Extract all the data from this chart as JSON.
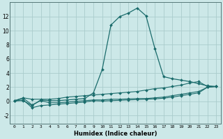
{
  "title": "",
  "xlabel": "Humidex (Indice chaleur)",
  "bg_color": "#cce8e8",
  "grid_color": "#aacccc",
  "line_color": "#1a6b6b",
  "xlim": [
    -0.5,
    23.5
  ],
  "ylim": [
    -3.2,
    14.0
  ],
  "xticks": [
    0,
    1,
    2,
    3,
    4,
    5,
    6,
    7,
    8,
    9,
    10,
    11,
    12,
    13,
    14,
    15,
    16,
    17,
    18,
    19,
    20,
    21,
    22,
    23
  ],
  "yticks": [
    -2,
    0,
    2,
    4,
    6,
    8,
    10,
    12
  ],
  "series": [
    {
      "x": [
        0,
        1,
        2,
        3,
        4,
        5,
        6,
        7,
        8,
        9,
        10,
        11,
        12,
        13,
        14,
        15,
        16,
        17,
        18,
        19,
        20,
        21,
        22,
        23
      ],
      "y": [
        0.05,
        0.45,
        -0.5,
        0.1,
        -0.2,
        -0.2,
        -0.1,
        0.0,
        0.1,
        0.2,
        0.2,
        0.3,
        0.3,
        0.35,
        0.4,
        0.4,
        0.5,
        0.6,
        0.8,
        1.0,
        1.2,
        1.4,
        2.0,
        2.1
      ],
      "marker": "D",
      "markersize": 2.0,
      "linewidth": 0.8
    },
    {
      "x": [
        0,
        1,
        2,
        3,
        4,
        5,
        6,
        7,
        8,
        9,
        10,
        11,
        12,
        13,
        14,
        15,
        16,
        17,
        18,
        19,
        20,
        21,
        22,
        23
      ],
      "y": [
        0.05,
        0.2,
        -0.9,
        -0.6,
        -0.5,
        -0.4,
        -0.3,
        -0.2,
        -0.1,
        0.1,
        0.05,
        0.1,
        0.15,
        0.2,
        0.25,
        0.3,
        0.35,
        0.45,
        0.6,
        0.8,
        1.0,
        1.2,
        2.0,
        2.1
      ],
      "marker": "D",
      "markersize": 2.0,
      "linewidth": 0.8
    },
    {
      "x": [
        0,
        1,
        2,
        3,
        4,
        5,
        6,
        7,
        8,
        9,
        10,
        11,
        12,
        13,
        14,
        15,
        16,
        17,
        18,
        19,
        20,
        21,
        22,
        23
      ],
      "y": [
        0.1,
        0.5,
        0.3,
        0.3,
        0.3,
        0.4,
        0.6,
        0.7,
        0.8,
        0.9,
        1.0,
        1.1,
        1.2,
        1.3,
        1.4,
        1.6,
        1.8,
        1.9,
        2.1,
        2.3,
        2.6,
        2.8,
        2.1,
        2.1
      ],
      "marker": "D",
      "markersize": 2.0,
      "linewidth": 0.8
    },
    {
      "x": [
        0,
        1,
        2,
        3,
        4,
        5,
        6,
        7,
        8,
        9,
        10,
        11,
        12,
        13,
        14,
        15,
        16,
        17,
        18,
        19,
        20,
        21,
        22,
        23
      ],
      "y": [
        0.1,
        0.1,
        -0.6,
        0.2,
        0.1,
        0.1,
        0.2,
        0.3,
        0.4,
        1.2,
        4.5,
        10.8,
        12.0,
        12.5,
        13.2,
        12.1,
        7.5,
        3.5,
        3.2,
        3.0,
        2.8,
        2.5,
        2.2,
        2.1
      ],
      "marker": "D",
      "markersize": 2.0,
      "linewidth": 0.9
    }
  ]
}
